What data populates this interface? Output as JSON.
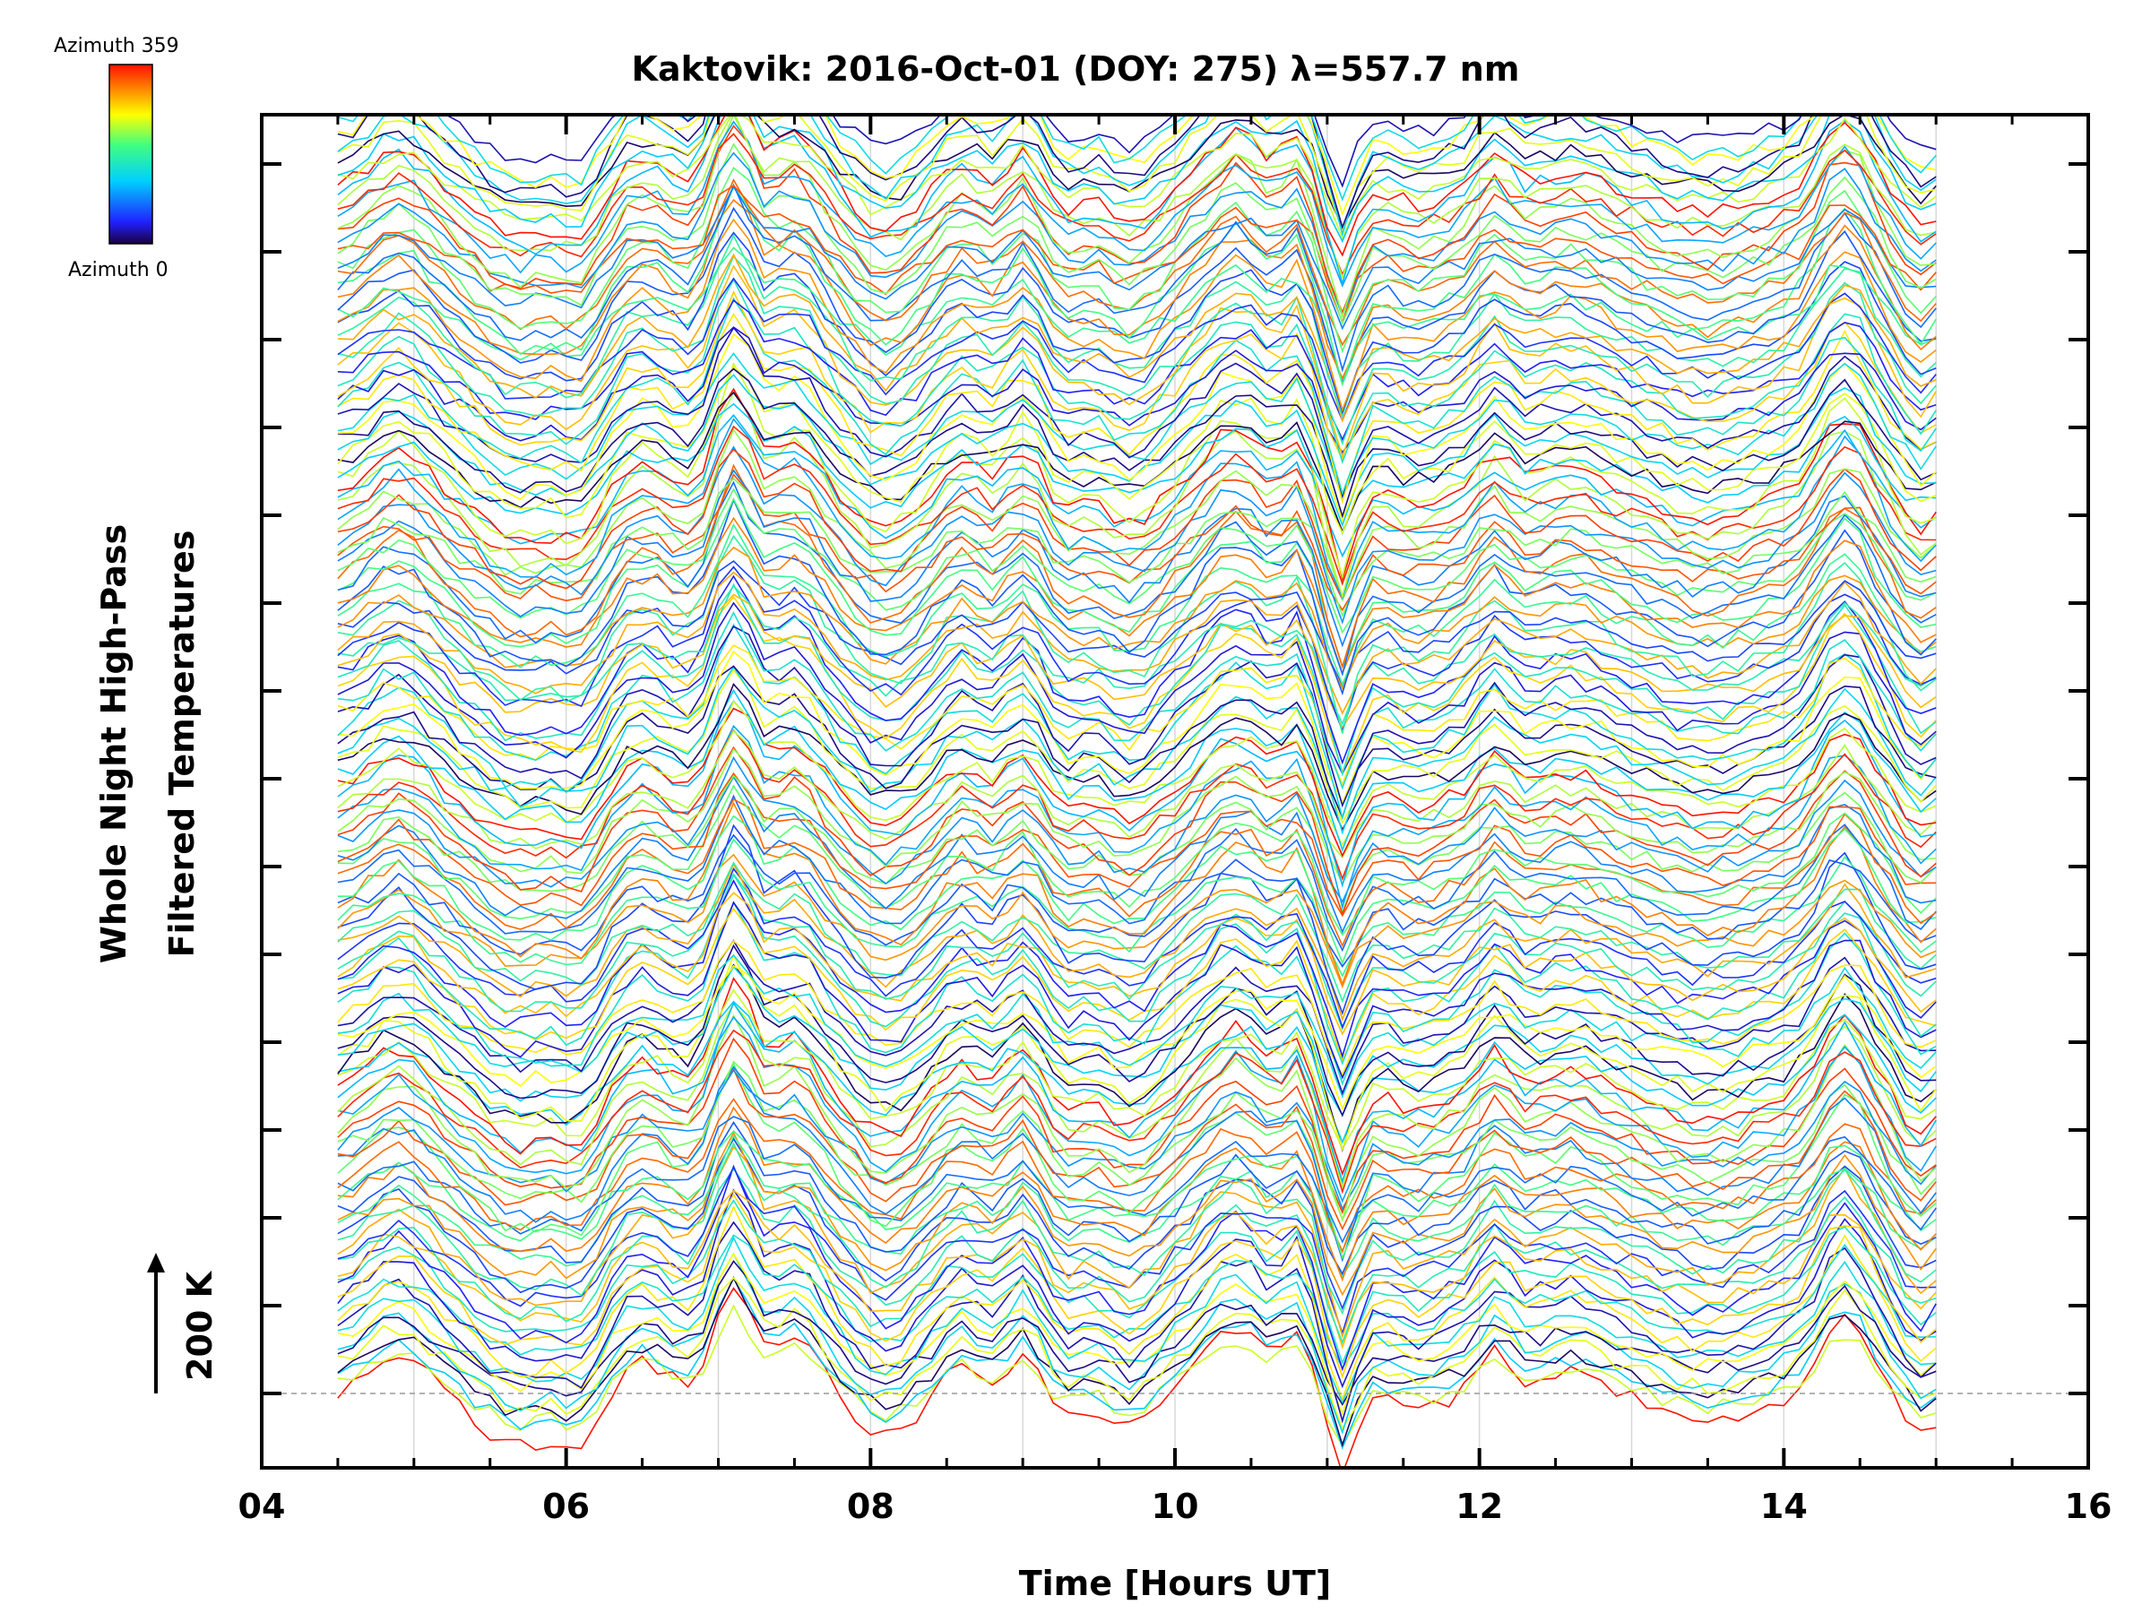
{
  "chart_data": {
    "type": "line",
    "title": "Kaktovik: 2016-Oct-01 (DOY: 275) λ=557.7 nm",
    "xlabel": "Time [Hours UT]",
    "ylabel_line1": "Whole Night High-Pass",
    "ylabel_line2": "Filtered Temperatures",
    "scale_label": "200 K",
    "colorbar": {
      "top_label": "Azimuth 359",
      "bottom_label": "Azimuth 0",
      "colormap": "rainbow",
      "min": 0,
      "max": 359
    },
    "x_range": [
      4,
      16
    ],
    "x_ticks": [
      4,
      6,
      8,
      10,
      12,
      14,
      16
    ],
    "x_tick_labels": [
      "04",
      "06",
      "08",
      "10",
      "12",
      "14",
      "16"
    ],
    "data_x_range": [
      4.5,
      15.0
    ],
    "x_gridlines": [
      5,
      6,
      7,
      8,
      9,
      10,
      11,
      12,
      13,
      14,
      15
    ],
    "y_ticks_unlabeled": 15,
    "scale_bar_K": 200,
    "series_count": 170,
    "series_color_order": "azimuth 0 (dark blue) to 359 (red), repeating in bands",
    "reference_line": "dashed horizontal baseline",
    "grid": true
  }
}
